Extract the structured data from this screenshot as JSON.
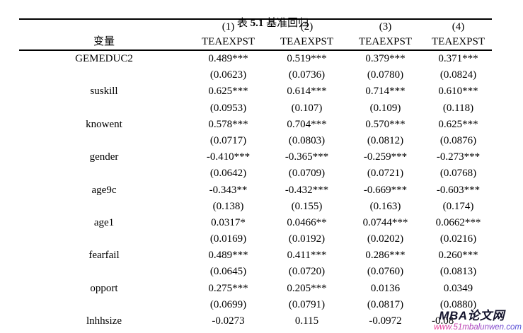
{
  "table": {
    "title": {
      "prefix": "表 ",
      "number": "5.1",
      "suffix": " 基准回归"
    },
    "header": {
      "variable_label": "变量",
      "columns": [
        {
          "number": "(1)",
          "dv": "TEAEXPST"
        },
        {
          "number": "(2)",
          "dv": "TEAEXPST"
        },
        {
          "number": "(3)",
          "dv": "TEAEXPST"
        },
        {
          "number": "(4)",
          "dv": "TEAEXPST"
        }
      ]
    },
    "rows": [
      {
        "variable": "GEMEDUC2",
        "coefs": [
          "0.489***",
          "0.519***",
          "0.379***",
          "0.371***"
        ],
        "ses": [
          "(0.0623)",
          "(0.0736)",
          "(0.0780)",
          "(0.0824)"
        ]
      },
      {
        "variable": "suskill",
        "coefs": [
          "0.625***",
          "0.614***",
          "0.714***",
          "0.610***"
        ],
        "ses": [
          "(0.0953)",
          "(0.107)",
          "(0.109)",
          "(0.118)"
        ]
      },
      {
        "variable": "knowent",
        "coefs": [
          "0.578***",
          "0.704***",
          "0.570***",
          "0.625***"
        ],
        "ses": [
          "(0.0717)",
          "(0.0803)",
          "(0.0812)",
          "(0.0876)"
        ]
      },
      {
        "variable": "gender",
        "coefs": [
          "-0.410***",
          "-0.365***",
          "-0.259***",
          "-0.273***"
        ],
        "ses": [
          "(0.0642)",
          "(0.0709)",
          "(0.0721)",
          "(0.0768)"
        ]
      },
      {
        "variable": "age9c",
        "coefs": [
          "-0.343**",
          "-0.432***",
          "-0.669***",
          "-0.603***"
        ],
        "ses": [
          "(0.138)",
          "(0.155)",
          "(0.163)",
          "(0.174)"
        ]
      },
      {
        "variable": "age1",
        "coefs": [
          "0.0317*",
          "0.0466**",
          "0.0744***",
          "0.0662***"
        ],
        "ses": [
          "(0.0169)",
          "(0.0192)",
          "(0.0202)",
          "(0.0216)"
        ]
      },
      {
        "variable": "fearfail",
        "coefs": [
          "0.489***",
          "0.411***",
          "0.286***",
          "0.260***"
        ],
        "ses": [
          "(0.0645)",
          "(0.0720)",
          "(0.0760)",
          "(0.0813)"
        ]
      },
      {
        "variable": "opport",
        "coefs": [
          "0.275***",
          "0.205***",
          "0.0136",
          "0.0349"
        ],
        "ses": [
          "(0.0699)",
          "(0.0791)",
          "(0.0817)",
          "(0.0880)"
        ]
      },
      {
        "variable": "lnhhsize",
        "coefs": [
          "-0.0273",
          "0.115",
          "-0.0972",
          "-0.08"
        ],
        "ses": null,
        "clipped": true
      }
    ]
  },
  "watermark": {
    "brand": "MBA论文网",
    "url": "www.51mbalunwen.com",
    "brand_color": "#14142d",
    "url_color_start": "#f23b93",
    "url_color_end": "#4b50d9"
  }
}
